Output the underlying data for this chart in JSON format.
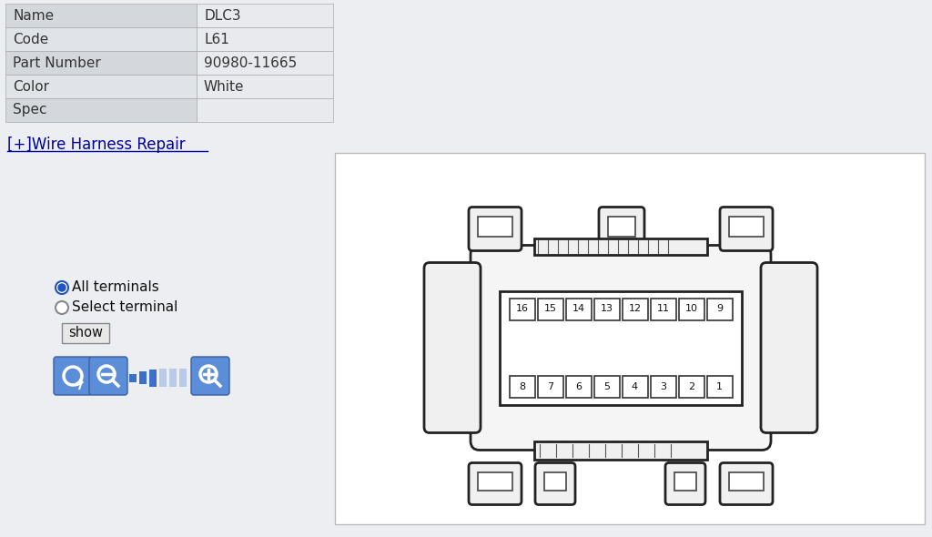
{
  "table_labels": [
    "Name",
    "Code",
    "Part Number",
    "Color",
    "Spec"
  ],
  "table_values": [
    "DLC3",
    "L61",
    "90980-11665",
    "White",
    ""
  ],
  "table_bg_odd": "#d4d8dc",
  "table_bg_even": "#e0e4e8",
  "link_text": "[+]Wire Harness Repair",
  "radio1_text": "All terminals",
  "radio2_text": "Select terminal",
  "show_btn_text": "show",
  "bg_color": "#eceef1",
  "connector_bg": "#ffffff",
  "connector_border": "#cccccc",
  "top_row": [
    16,
    15,
    14,
    13,
    12,
    11,
    10,
    9
  ],
  "bottom_row": [
    8,
    7,
    6,
    5,
    4,
    3,
    2,
    1
  ],
  "pin_box_color": "#ffffff",
  "pin_box_border": "#333333",
  "connector_line_color": "#222222",
  "btn_color": "#5b8dd9",
  "btn_border": "#3a6abf"
}
